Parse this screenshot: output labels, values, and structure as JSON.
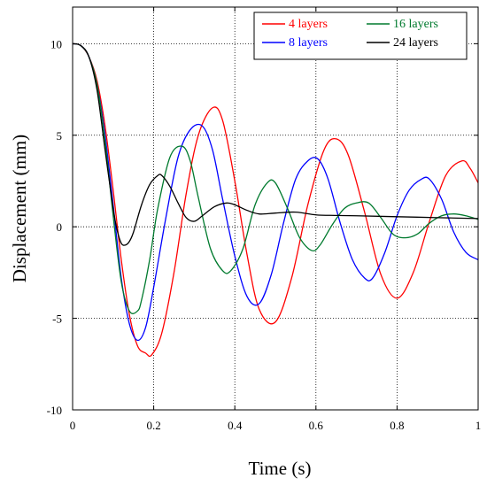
{
  "chart_data": {
    "type": "line",
    "title": "",
    "xlabel": "Time (s)",
    "ylabel": "Displacement (mm)",
    "xlim": [
      0,
      1
    ],
    "ylim": [
      -10,
      12
    ],
    "xticks": [
      0,
      0.2,
      0.4,
      0.6,
      0.8,
      1
    ],
    "xtick_labels": [
      "0",
      "0.2",
      "0.4",
      "0.6",
      "0.8",
      "1"
    ],
    "yticks": [
      -10,
      -5,
      0,
      5,
      10
    ],
    "ytick_labels": [
      "-10",
      "-5",
      "0",
      "5",
      "10"
    ],
    "grid": true,
    "legend_position": "top-right",
    "series": [
      {
        "name": "4 layers",
        "color": "#ff0000",
        "x": [
          0,
          0.02,
          0.04,
          0.06,
          0.08,
          0.1,
          0.12,
          0.14,
          0.16,
          0.18,
          0.195,
          0.22,
          0.25,
          0.28,
          0.31,
          0.345,
          0.37,
          0.4,
          0.43,
          0.46,
          0.5,
          0.54,
          0.58,
          0.62,
          0.65,
          0.68,
          0.72,
          0.76,
          0.8,
          0.84,
          0.88,
          0.92,
          0.96,
          0.98,
          1.0
        ],
        "y": [
          10,
          9.9,
          9.3,
          8.0,
          5.5,
          2.0,
          -1.8,
          -4.8,
          -6.5,
          -6.9,
          -7.0,
          -5.8,
          -2.5,
          1.8,
          5.0,
          6.5,
          5.8,
          2.5,
          -1.5,
          -4.5,
          -5.2,
          -2.8,
          1.2,
          4.2,
          4.8,
          3.9,
          0.8,
          -2.6,
          -3.9,
          -2.5,
          0.3,
          2.8,
          3.6,
          3.2,
          2.4
        ]
      },
      {
        "name": "8 layers",
        "color": "#0000ff",
        "x": [
          0,
          0.02,
          0.04,
          0.06,
          0.08,
          0.1,
          0.12,
          0.14,
          0.16,
          0.18,
          0.2,
          0.23,
          0.26,
          0.29,
          0.32,
          0.345,
          0.37,
          0.4,
          0.43,
          0.46,
          0.49,
          0.52,
          0.55,
          0.58,
          0.605,
          0.63,
          0.66,
          0.69,
          0.72,
          0.74,
          0.77,
          0.8,
          0.83,
          0.86,
          0.88,
          0.91,
          0.94,
          0.97,
          1.0
        ],
        "y": [
          10,
          9.9,
          9.3,
          7.8,
          5.0,
          1.2,
          -2.8,
          -5.3,
          -6.2,
          -5.5,
          -3.3,
          0.5,
          3.8,
          5.3,
          5.5,
          4.2,
          1.5,
          -1.6,
          -3.8,
          -4.2,
          -2.6,
          0.2,
          2.6,
          3.6,
          3.7,
          2.6,
          0.2,
          -1.8,
          -2.8,
          -2.8,
          -1.4,
          0.6,
          2.0,
          2.6,
          2.6,
          1.5,
          -0.3,
          -1.4,
          -1.8
        ]
      },
      {
        "name": "16 layers",
        "color": "#007a2e",
        "x": [
          0,
          0.02,
          0.04,
          0.06,
          0.08,
          0.1,
          0.12,
          0.14,
          0.16,
          0.17,
          0.19,
          0.21,
          0.24,
          0.27,
          0.29,
          0.31,
          0.34,
          0.37,
          0.39,
          0.42,
          0.45,
          0.48,
          0.5,
          0.53,
          0.56,
          0.59,
          0.61,
          0.64,
          0.67,
          0.7,
          0.73,
          0.76,
          0.79,
          0.82,
          0.85,
          0.88,
          0.91,
          0.94,
          0.97,
          1.0
        ],
        "y": [
          10,
          9.9,
          9.3,
          7.8,
          4.7,
          0.6,
          -3.0,
          -4.6,
          -4.6,
          -4.0,
          -1.8,
          1.0,
          3.8,
          4.4,
          3.6,
          1.6,
          -1.2,
          -2.4,
          -2.4,
          -1.2,
          1.2,
          2.4,
          2.4,
          1.0,
          -0.6,
          -1.3,
          -1.0,
          0.1,
          1.0,
          1.3,
          1.3,
          0.5,
          -0.4,
          -0.6,
          -0.4,
          0.2,
          0.6,
          0.7,
          0.6,
          0.4
        ]
      },
      {
        "name": "24 layers",
        "color": "#000000",
        "x": [
          0,
          0.02,
          0.04,
          0.06,
          0.08,
          0.1,
          0.11,
          0.12,
          0.13,
          0.14,
          0.15,
          0.17,
          0.19,
          0.21,
          0.22,
          0.24,
          0.26,
          0.28,
          0.3,
          0.32,
          0.35,
          0.38,
          0.4,
          0.43,
          0.46,
          0.5,
          0.55,
          0.6,
          0.65,
          0.7,
          0.8,
          0.9,
          1.0
        ],
        "y": [
          10,
          9.9,
          9.3,
          7.5,
          4.2,
          1.0,
          -0.2,
          -0.9,
          -1.0,
          -0.8,
          -0.3,
          1.2,
          2.3,
          2.8,
          2.8,
          2.2,
          1.3,
          0.5,
          0.3,
          0.6,
          1.1,
          1.3,
          1.2,
          0.9,
          0.7,
          0.75,
          0.8,
          0.65,
          0.62,
          0.6,
          0.55,
          0.5,
          0.45
        ]
      }
    ]
  }
}
